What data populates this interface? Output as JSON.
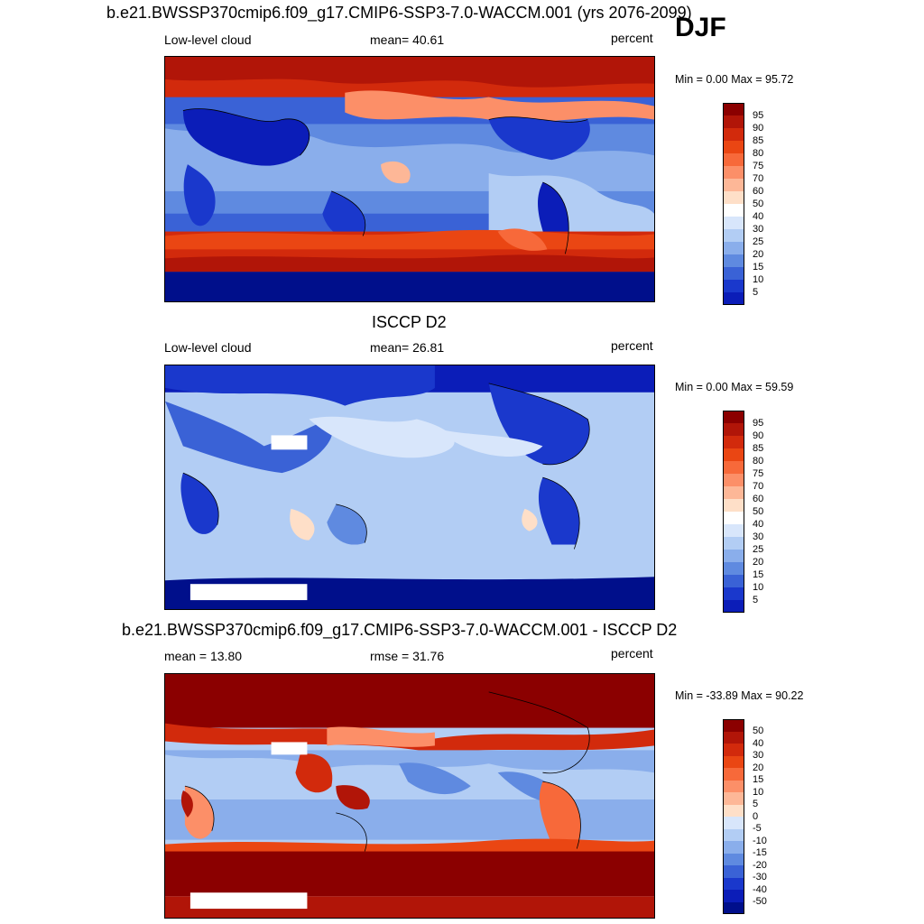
{
  "season": "DJF",
  "panels": [
    {
      "title": "b.e21.BWSSP370cmip6.f09_g17.CMIP6-SSP3-7.0-WACCM.001 (yrs 2076-2099)",
      "left_label": "Low-level cloud",
      "center_label": "mean=  40.61",
      "units": "percent",
      "minmax": "Min =   0.00 Max =  95.72",
      "colorbar_ticks": [
        "95",
        "90",
        "85",
        "80",
        "75",
        "70",
        "60",
        "50",
        "40",
        "30",
        "25",
        "20",
        "15",
        "10",
        "5"
      ]
    },
    {
      "title": "ISCCP D2",
      "left_label": "Low-level cloud",
      "center_label": "mean=  26.81",
      "units": "percent",
      "minmax": "Min =   0.00 Max =  59.59",
      "colorbar_ticks": [
        "95",
        "90",
        "85",
        "80",
        "75",
        "70",
        "60",
        "50",
        "40",
        "30",
        "25",
        "20",
        "15",
        "10",
        "5"
      ]
    },
    {
      "title": "b.e21.BWSSP370cmip6.f09_g17.CMIP6-SSP3-7.0-WACCM.001 - ISCCP D2",
      "left_label": "mean =  13.80",
      "center_label": "rmse =  31.76",
      "units": "percent",
      "minmax": "Min = -33.89 Max =  90.22",
      "colorbar_ticks": [
        "50",
        "40",
        "30",
        "20",
        "15",
        "10",
        "5",
        "0",
        "-5",
        "-10",
        "-15",
        "-20",
        "-30",
        "-40",
        "-50"
      ]
    }
  ],
  "colors": {
    "scale": [
      "#8b0000",
      "#b11508",
      "#d22a0c",
      "#ea4613",
      "#f7693a",
      "#fc8f68",
      "#fdb797",
      "#fedfc8",
      "#ffffff",
      "#d8e6fb",
      "#b2cdf4",
      "#8aaeeb",
      "#5f8ae0",
      "#3a62d6",
      "#1a38cc",
      "#0b1db8",
      "#000f8b"
    ]
  },
  "chart_data": [
    {
      "type": "heatmap",
      "title": "b.e21.BWSSP370cmip6.f09_g17.CMIP6-SSP3-7.0-WACCM.001 (yrs 2076-2099)",
      "variable": "Low-level cloud",
      "units": "percent",
      "mean": 40.61,
      "min": 0.0,
      "max": 95.72,
      "levels": [
        5,
        10,
        15,
        20,
        25,
        30,
        40,
        50,
        60,
        70,
        75,
        80,
        85,
        90,
        95
      ]
    },
    {
      "type": "heatmap",
      "title": "ISCCP D2",
      "variable": "Low-level cloud",
      "units": "percent",
      "mean": 26.81,
      "min": 0.0,
      "max": 59.59,
      "levels": [
        5,
        10,
        15,
        20,
        25,
        30,
        40,
        50,
        60,
        70,
        75,
        80,
        85,
        90,
        95
      ]
    },
    {
      "type": "heatmap",
      "title": "b.e21.BWSSP370cmip6.f09_g17.CMIP6-SSP3-7.0-WACCM.001 - ISCCP D2",
      "units": "percent",
      "mean": 13.8,
      "rmse": 31.76,
      "min": -33.89,
      "max": 90.22,
      "levels": [
        -50,
        -40,
        -30,
        -20,
        -15,
        -10,
        -5,
        0,
        5,
        10,
        15,
        20,
        30,
        40,
        50
      ]
    }
  ]
}
